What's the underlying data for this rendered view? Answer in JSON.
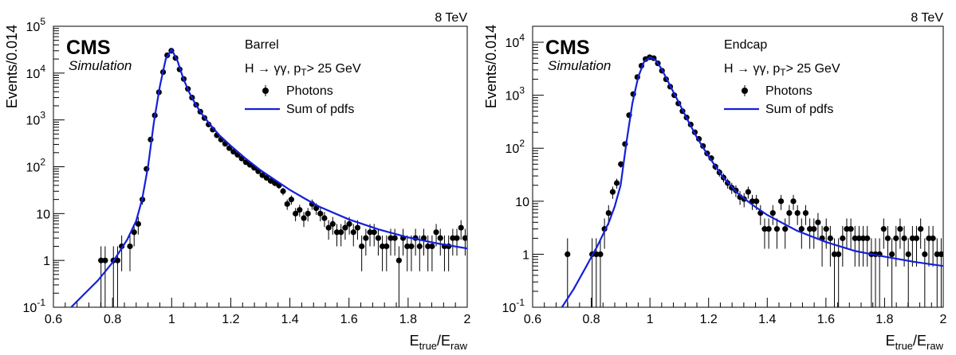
{
  "chart_data": [
    {
      "type": "scatter",
      "energy_label": "8 TeV",
      "experiment": "CMS",
      "experiment_sub": "Simulation",
      "region": "Barrel",
      "selection": "H → γγ, p",
      "selection_sub": "T",
      "selection_tail": "> 25 GeV",
      "xlabel": "E",
      "xlabel_sub1": "true",
      "xlabel_mid": "/E",
      "xlabel_sub2": "raw",
      "ylabel": "Events/0.014",
      "xlim": [
        0.6,
        2.0
      ],
      "ylim": [
        0.1,
        100000
      ],
      "yscale": "log",
      "x_ticks": [
        "0.6",
        "0.8",
        "1",
        "1.2",
        "1.4",
        "1.6",
        "1.8",
        "2"
      ],
      "y_ticks": [
        {
          "base": "10",
          "exp": "-1"
        },
        {
          "base": "1",
          "exp": ""
        },
        {
          "base": "10",
          "exp": ""
        },
        {
          "base": "10",
          "exp": "2"
        },
        {
          "base": "10",
          "exp": "3"
        },
        {
          "base": "10",
          "exp": "4"
        },
        {
          "base": "10",
          "exp": "5"
        }
      ],
      "legend": [
        "Photons",
        "Sum of pdfs"
      ],
      "legend_position": "top-right",
      "points": [
        [
          0.761,
          1
        ],
        [
          0.775,
          1
        ],
        [
          0.803,
          1
        ],
        [
          0.817,
          1
        ],
        [
          0.831,
          2
        ],
        [
          0.859,
          2
        ],
        [
          0.873,
          4
        ],
        [
          0.887,
          6
        ],
        [
          0.901,
          20
        ],
        [
          0.915,
          90
        ],
        [
          0.929,
          380
        ],
        [
          0.943,
          1250
        ],
        [
          0.957,
          3900
        ],
        [
          0.971,
          10500
        ],
        [
          0.985,
          24000
        ],
        [
          0.999,
          30000
        ],
        [
          1.013,
          21000
        ],
        [
          1.027,
          12000
        ],
        [
          1.041,
          7500
        ],
        [
          1.055,
          4600
        ],
        [
          1.069,
          3000
        ],
        [
          1.083,
          2100
        ],
        [
          1.097,
          1500
        ],
        [
          1.111,
          1100
        ],
        [
          1.125,
          800
        ],
        [
          1.139,
          620
        ],
        [
          1.153,
          470
        ],
        [
          1.167,
          380
        ],
        [
          1.181,
          310
        ],
        [
          1.195,
          250
        ],
        [
          1.209,
          210
        ],
        [
          1.223,
          180
        ],
        [
          1.237,
          150
        ],
        [
          1.251,
          125
        ],
        [
          1.265,
          110
        ],
        [
          1.279,
          95
        ],
        [
          1.293,
          80
        ],
        [
          1.307,
          66
        ],
        [
          1.321,
          58
        ],
        [
          1.335,
          50
        ],
        [
          1.349,
          45
        ],
        [
          1.363,
          40
        ],
        [
          1.377,
          30
        ],
        [
          1.391,
          16
        ],
        [
          1.405,
          20
        ],
        [
          1.419,
          10
        ],
        [
          1.433,
          12
        ],
        [
          1.447,
          8
        ],
        [
          1.461,
          10
        ],
        [
          1.475,
          16
        ],
        [
          1.489,
          13
        ],
        [
          1.503,
          10
        ],
        [
          1.517,
          8
        ],
        [
          1.531,
          5
        ],
        [
          1.545,
          6
        ],
        [
          1.559,
          4
        ],
        [
          1.573,
          4
        ],
        [
          1.587,
          5
        ],
        [
          1.601,
          6
        ],
        [
          1.615,
          4
        ],
        [
          1.629,
          5
        ],
        [
          1.643,
          2
        ],
        [
          1.657,
          3
        ],
        [
          1.671,
          4
        ],
        [
          1.685,
          4
        ],
        [
          1.699,
          3
        ],
        [
          1.713,
          2
        ],
        [
          1.727,
          2
        ],
        [
          1.741,
          3
        ],
        [
          1.755,
          3
        ],
        [
          1.769,
          1
        ],
        [
          1.783,
          3
        ],
        [
          1.797,
          2
        ],
        [
          1.811,
          2
        ],
        [
          1.825,
          3
        ],
        [
          1.839,
          2
        ],
        [
          1.853,
          3
        ],
        [
          1.867,
          2
        ],
        [
          1.881,
          2
        ],
        [
          1.895,
          4
        ],
        [
          1.909,
          3
        ],
        [
          1.923,
          2
        ],
        [
          1.937,
          2
        ],
        [
          1.951,
          3
        ],
        [
          1.965,
          3
        ],
        [
          1.979,
          5
        ],
        [
          1.993,
          3
        ]
      ],
      "curve": [
        [
          0.66,
          0.1
        ],
        [
          0.7,
          0.18
        ],
        [
          0.75,
          0.37
        ],
        [
          0.8,
          0.9
        ],
        [
          0.85,
          2.8
        ],
        [
          0.88,
          7
        ],
        [
          0.9,
          20
        ],
        [
          0.92,
          100
        ],
        [
          0.94,
          900
        ],
        [
          0.96,
          5200
        ],
        [
          0.98,
          20000
        ],
        [
          1.0,
          32000
        ],
        [
          1.02,
          18000
        ],
        [
          1.04,
          7500
        ],
        [
          1.06,
          3800
        ],
        [
          1.08,
          2200
        ],
        [
          1.1,
          1400
        ],
        [
          1.13,
          800
        ],
        [
          1.16,
          480
        ],
        [
          1.2,
          280
        ],
        [
          1.25,
          150
        ],
        [
          1.3,
          85
        ],
        [
          1.35,
          52
        ],
        [
          1.4,
          32
        ],
        [
          1.45,
          21
        ],
        [
          1.5,
          14
        ],
        [
          1.6,
          7.5
        ],
        [
          1.7,
          4.6
        ],
        [
          1.8,
          3.1
        ],
        [
          1.9,
          2.3
        ],
        [
          2.0,
          1.8
        ]
      ]
    },
    {
      "type": "scatter",
      "energy_label": "8 TeV",
      "experiment": "CMS",
      "experiment_sub": "Simulation",
      "region": "Endcap",
      "selection": "H → γγ, p",
      "selection_sub": "T",
      "selection_tail": "> 25 GeV",
      "xlabel": "E",
      "xlabel_sub1": "true",
      "xlabel_mid": "/E",
      "xlabel_sub2": "raw",
      "ylabel": "Events/0.014",
      "xlim": [
        0.6,
        2.0
      ],
      "ylim": [
        0.1,
        20000
      ],
      "yscale": "log",
      "x_ticks": [
        "0.6",
        "0.8",
        "1",
        "1.2",
        "1.4",
        "1.6",
        "1.8",
        "2"
      ],
      "y_ticks": [
        {
          "base": "10",
          "exp": "-1"
        },
        {
          "base": "1",
          "exp": ""
        },
        {
          "base": "10",
          "exp": ""
        },
        {
          "base": "10",
          "exp": "2"
        },
        {
          "base": "10",
          "exp": "3"
        },
        {
          "base": "10",
          "exp": "4"
        }
      ],
      "legend": [
        "Photons",
        "Sum of pdfs"
      ],
      "legend_position": "top-right",
      "points": [
        [
          0.719,
          1
        ],
        [
          0.803,
          1
        ],
        [
          0.817,
          1
        ],
        [
          0.831,
          1
        ],
        [
          0.845,
          3
        ],
        [
          0.859,
          6
        ],
        [
          0.873,
          15
        ],
        [
          0.887,
          22
        ],
        [
          0.901,
          50
        ],
        [
          0.915,
          120
        ],
        [
          0.929,
          420
        ],
        [
          0.943,
          1050
        ],
        [
          0.957,
          2200
        ],
        [
          0.971,
          3600
        ],
        [
          0.985,
          4800
        ],
        [
          0.999,
          5200
        ],
        [
          1.013,
          5000
        ],
        [
          1.027,
          4000
        ],
        [
          1.041,
          2900
        ],
        [
          1.055,
          2000
        ],
        [
          1.069,
          1450
        ],
        [
          1.083,
          1000
        ],
        [
          1.097,
          700
        ],
        [
          1.111,
          500
        ],
        [
          1.125,
          380
        ],
        [
          1.139,
          280
        ],
        [
          1.153,
          200
        ],
        [
          1.167,
          150
        ],
        [
          1.181,
          110
        ],
        [
          1.195,
          80
        ],
        [
          1.209,
          65
        ],
        [
          1.223,
          45
        ],
        [
          1.237,
          35
        ],
        [
          1.251,
          28
        ],
        [
          1.265,
          22
        ],
        [
          1.279,
          18
        ],
        [
          1.293,
          16
        ],
        [
          1.307,
          12
        ],
        [
          1.321,
          11
        ],
        [
          1.335,
          15
        ],
        [
          1.349,
          10
        ],
        [
          1.363,
          10
        ],
        [
          1.377,
          6
        ],
        [
          1.391,
          3
        ],
        [
          1.405,
          3
        ],
        [
          1.419,
          6
        ],
        [
          1.433,
          3
        ],
        [
          1.447,
          10
        ],
        [
          1.461,
          3
        ],
        [
          1.475,
          6
        ],
        [
          1.489,
          10
        ],
        [
          1.503,
          6
        ],
        [
          1.517,
          3
        ],
        [
          1.531,
          6
        ],
        [
          1.545,
          3
        ],
        [
          1.559,
          3
        ],
        [
          1.573,
          4
        ],
        [
          1.587,
          2
        ],
        [
          1.601,
          3
        ],
        [
          1.615,
          2
        ],
        [
          1.629,
          1
        ],
        [
          1.643,
          1
        ],
        [
          1.657,
          2
        ],
        [
          1.671,
          3
        ],
        [
          1.685,
          3
        ],
        [
          1.699,
          2
        ],
        [
          1.713,
          2
        ],
        [
          1.727,
          2
        ],
        [
          1.741,
          2
        ],
        [
          1.755,
          1
        ],
        [
          1.769,
          1
        ],
        [
          1.783,
          1
        ],
        [
          1.797,
          3
        ],
        [
          1.811,
          2
        ],
        [
          1.825,
          1
        ],
        [
          1.839,
          2
        ],
        [
          1.853,
          3
        ],
        [
          1.867,
          2
        ],
        [
          1.881,
          1
        ],
        [
          1.895,
          2
        ],
        [
          1.909,
          2
        ],
        [
          1.923,
          3
        ],
        [
          1.937,
          1
        ],
        [
          1.951,
          2
        ],
        [
          1.965,
          2
        ],
        [
          1.979,
          1
        ],
        [
          1.993,
          1
        ]
      ],
      "curve": [
        [
          0.7,
          0.1
        ],
        [
          0.74,
          0.22
        ],
        [
          0.78,
          0.55
        ],
        [
          0.82,
          1.4
        ],
        [
          0.86,
          4
        ],
        [
          0.88,
          8
        ],
        [
          0.9,
          20
        ],
        [
          0.92,
          130
        ],
        [
          0.94,
          700
        ],
        [
          0.96,
          2200
        ],
        [
          0.98,
          4300
        ],
        [
          1.0,
          5200
        ],
        [
          1.02,
          4600
        ],
        [
          1.04,
          3100
        ],
        [
          1.06,
          1900
        ],
        [
          1.08,
          1150
        ],
        [
          1.1,
          700
        ],
        [
          1.13,
          330
        ],
        [
          1.16,
          160
        ],
        [
          1.2,
          70
        ],
        [
          1.25,
          28
        ],
        [
          1.3,
          14
        ],
        [
          1.35,
          8.5
        ],
        [
          1.4,
          5.5
        ],
        [
          1.5,
          2.8
        ],
        [
          1.6,
          1.7
        ],
        [
          1.7,
          1.15
        ],
        [
          1.8,
          0.9
        ],
        [
          1.9,
          0.72
        ],
        [
          2.0,
          0.6
        ]
      ]
    }
  ]
}
